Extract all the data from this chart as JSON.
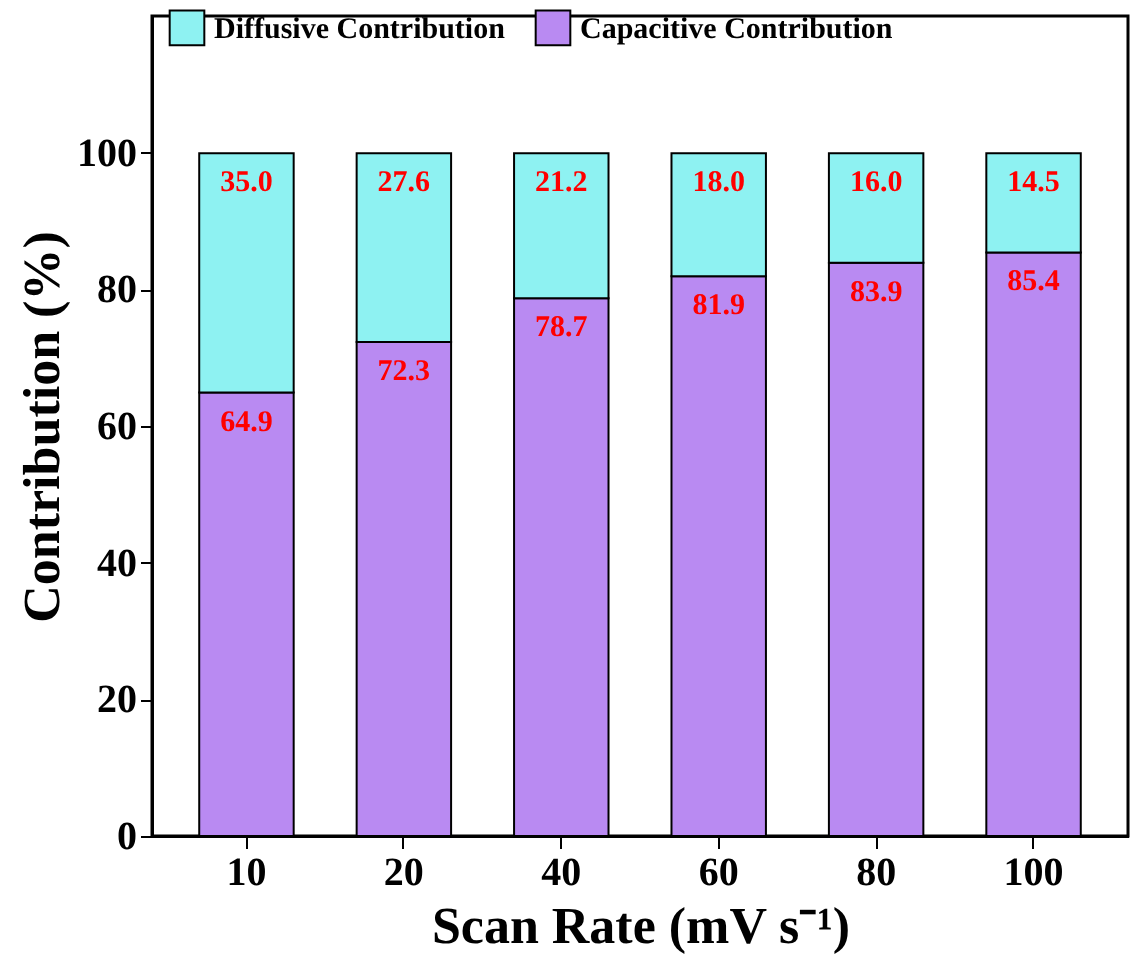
{
  "chart_data": {
    "type": "bar",
    "stacked": true,
    "xlabel": "Scan Rate (mV s⁻¹)",
    "ylabel": "Contribution (%)",
    "categories": [
      "10",
      "20",
      "40",
      "60",
      "80",
      "100"
    ],
    "ylim": [
      0,
      120
    ],
    "yticks": [
      0,
      20,
      40,
      60,
      80,
      100
    ],
    "grid": false,
    "legend": "top",
    "series": [
      {
        "name": "Capacitive Contribution",
        "color": "#b98af2",
        "values": [
          64.9,
          72.3,
          78.7,
          81.9,
          83.9,
          85.4
        ],
        "value_labels": [
          "64.9",
          "72.3",
          "78.7",
          "81.9",
          "83.9",
          "85.4"
        ]
      },
      {
        "name": "Diffusive Contribution",
        "color": "#8ef2f2",
        "values": [
          35.0,
          27.6,
          21.2,
          18.0,
          16.0,
          14.5
        ],
        "value_labels": [
          "35.0",
          "27.6",
          "21.2",
          "18.0",
          "16.0",
          "14.5"
        ]
      }
    ]
  }
}
